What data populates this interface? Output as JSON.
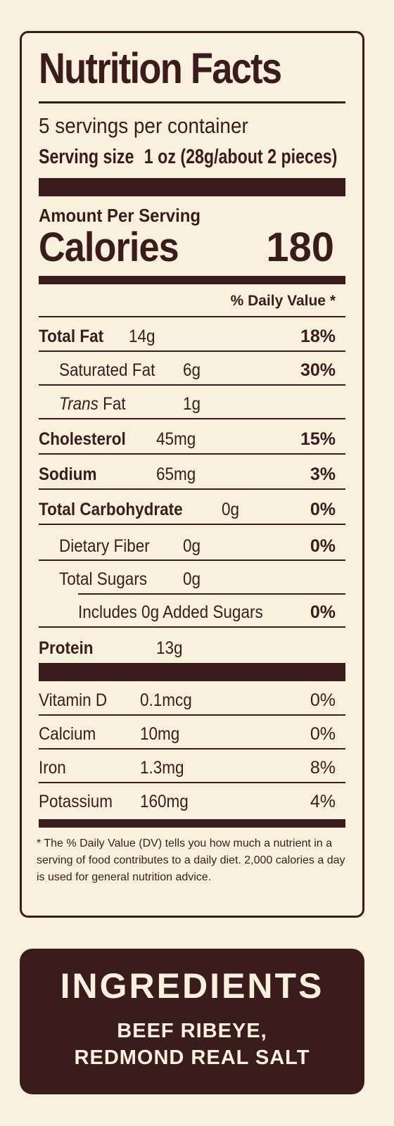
{
  "title": "Nutrition Facts",
  "servings_per_container": "5 servings per container",
  "serving_size_label": "Serving size",
  "serving_size_value": "1 oz (28g/about 2 pieces)",
  "amount_per_serving": "Amount Per Serving",
  "calories_label": "Calories",
  "calories_value": "180",
  "daily_value_header": "% Daily Value *",
  "nutrients": {
    "total_fat": {
      "label": "Total Fat",
      "amount": "14g",
      "dv": "18%"
    },
    "saturated_fat": {
      "label": "Saturated Fat",
      "amount": "6g",
      "dv": "30%"
    },
    "trans_fat": {
      "label_italic": "Trans",
      "label": "Fat",
      "amount": "1g"
    },
    "cholesterol": {
      "label": "Cholesterol",
      "amount": "45mg",
      "dv": "15%"
    },
    "sodium": {
      "label": "Sodium",
      "amount": "65mg",
      "dv": "3%"
    },
    "total_carbohydrate": {
      "label": "Total Carbohydrate",
      "amount": "0g",
      "dv": "0%"
    },
    "dietary_fiber": {
      "label": "Dietary Fiber",
      "amount": "0g",
      "dv": "0%"
    },
    "total_sugars": {
      "label": "Total Sugars",
      "amount": "0g"
    },
    "added_sugars": {
      "label": "Includes 0g Added Sugars",
      "dv": "0%"
    },
    "protein": {
      "label": "Protein",
      "amount": "13g"
    }
  },
  "vitamins": [
    {
      "label": "Vitamin D",
      "amount": "0.1mcg",
      "dv": "0%"
    },
    {
      "label": "Calcium",
      "amount": "10mg",
      "dv": "0%"
    },
    {
      "label": "Iron",
      "amount": "1.3mg",
      "dv": "8%"
    },
    {
      "label": "Potassium",
      "amount": "160mg",
      "dv": "4%"
    }
  ],
  "footnote": "* The % Daily Value (DV) tells you how much a nutrient in a serving of food contributes to a daily diet. 2,000 calories a day is used for general nutrition advice.",
  "ingredients": {
    "title": "INGREDIENTS",
    "line1": "BEEF RIBEYE,",
    "line2": "REDMOND REAL SALT"
  },
  "colors": {
    "background": "#f9f0dd",
    "ink": "#3a1c1c"
  }
}
